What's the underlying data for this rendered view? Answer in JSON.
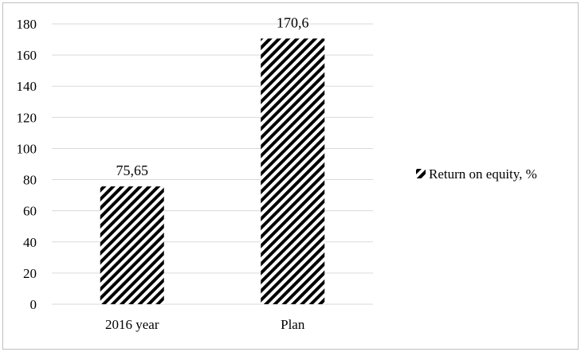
{
  "chart_data": {
    "type": "bar",
    "categories": [
      "2016 year",
      "Plan"
    ],
    "series": [
      {
        "name": "Return on equity, %",
        "values": [
          75.65,
          170.6
        ]
      }
    ],
    "data_labels": [
      "75,65",
      "170,6"
    ],
    "ylim": [
      0,
      180
    ],
    "yticks": [
      0,
      20,
      40,
      60,
      80,
      100,
      120,
      140,
      160,
      180
    ],
    "grid": true,
    "legend_position": "right",
    "bar_fill": "diagonal black hatch",
    "colors": {
      "hatch": "#000000",
      "background": "#ffffff",
      "grid": "#d9d9d9",
      "border": "#bfbfbf"
    }
  }
}
